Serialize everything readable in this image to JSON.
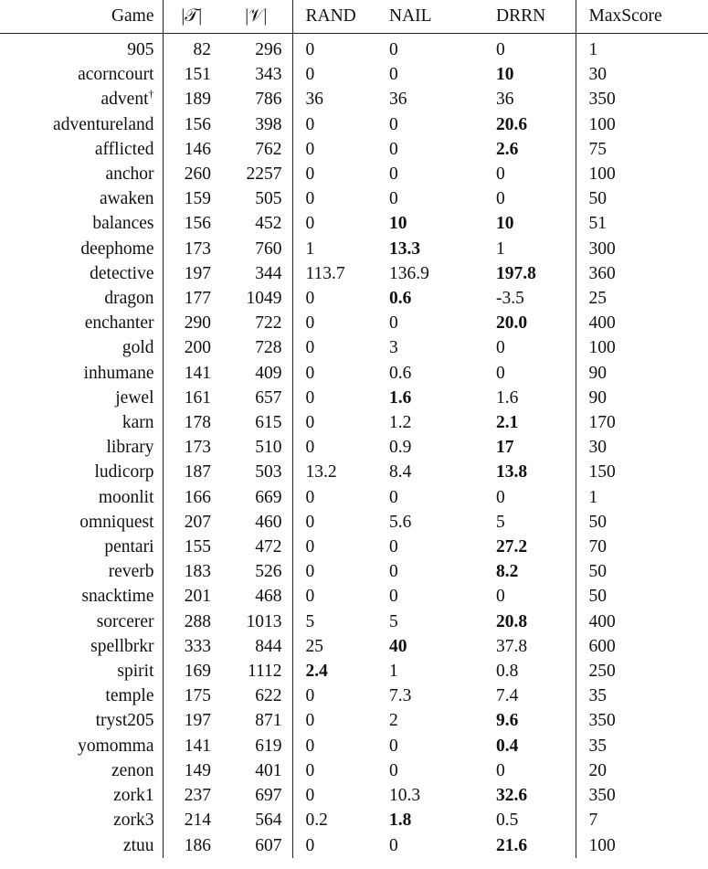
{
  "headers": {
    "game": "Game",
    "t": "|𝒯|",
    "v": "|𝒱|",
    "rand": "RAND",
    "nail": "NAIL",
    "drrn": "DRRN",
    "max": "MaxScore"
  },
  "rows": [
    {
      "game": "905",
      "t": "82",
      "v": "296",
      "rand": "0",
      "nail": "0",
      "drrn": "0",
      "max": "1",
      "bold": []
    },
    {
      "game": "acorncourt",
      "t": "151",
      "v": "343",
      "rand": "0",
      "nail": "0",
      "drrn": "10",
      "max": "30",
      "bold": [
        "drrn"
      ]
    },
    {
      "game": "advent",
      "sup": "†",
      "t": "189",
      "v": "786",
      "rand": "36",
      "nail": "36",
      "drrn": "36",
      "max": "350",
      "bold": []
    },
    {
      "game": "adventureland",
      "t": "156",
      "v": "398",
      "rand": "0",
      "nail": "0",
      "drrn": "20.6",
      "max": "100",
      "bold": [
        "drrn"
      ]
    },
    {
      "game": "afflicted",
      "t": "146",
      "v": "762",
      "rand": "0",
      "nail": "0",
      "drrn": "2.6",
      "max": "75",
      "bold": [
        "drrn"
      ]
    },
    {
      "game": "anchor",
      "t": "260",
      "v": "2257",
      "rand": "0",
      "nail": "0",
      "drrn": "0",
      "max": "100",
      "bold": []
    },
    {
      "game": "awaken",
      "t": "159",
      "v": "505",
      "rand": "0",
      "nail": "0",
      "drrn": "0",
      "max": "50",
      "bold": []
    },
    {
      "game": "balances",
      "t": "156",
      "v": "452",
      "rand": "0",
      "nail": "10",
      "drrn": "10",
      "max": "51",
      "bold": [
        "nail",
        "drrn"
      ]
    },
    {
      "game": "deephome",
      "t": "173",
      "v": "760",
      "rand": "1",
      "nail": "13.3",
      "drrn": "1",
      "max": "300",
      "bold": [
        "nail"
      ]
    },
    {
      "game": "detective",
      "t": "197",
      "v": "344",
      "rand": "113.7",
      "nail": "136.9",
      "drrn": "197.8",
      "max": "360",
      "bold": [
        "drrn"
      ]
    },
    {
      "game": "dragon",
      "t": "177",
      "v": "1049",
      "rand": "0",
      "nail": "0.6",
      "drrn": "-3.5",
      "max": "25",
      "bold": [
        "nail"
      ]
    },
    {
      "game": "enchanter",
      "t": "290",
      "v": "722",
      "rand": "0",
      "nail": "0",
      "drrn": "20.0",
      "max": "400",
      "bold": [
        "drrn"
      ]
    },
    {
      "game": "gold",
      "t": "200",
      "v": "728",
      "rand": "0",
      "nail": "3",
      "drrn": "0",
      "max": "100",
      "bold": []
    },
    {
      "game": "inhumane",
      "t": "141",
      "v": "409",
      "rand": "0",
      "nail": "0.6",
      "drrn": "0",
      "max": "90",
      "bold": []
    },
    {
      "game": "jewel",
      "t": "161",
      "v": "657",
      "rand": "0",
      "nail": "1.6",
      "drrn": "1.6",
      "max": "90",
      "bold": [
        "nail"
      ]
    },
    {
      "game": "karn",
      "t": "178",
      "v": "615",
      "rand": "0",
      "nail": "1.2",
      "drrn": "2.1",
      "max": "170",
      "bold": [
        "drrn"
      ]
    },
    {
      "game": "library",
      "t": "173",
      "v": "510",
      "rand": "0",
      "nail": "0.9",
      "drrn": "17",
      "max": "30",
      "bold": [
        "drrn"
      ]
    },
    {
      "game": "ludicorp",
      "t": "187",
      "v": "503",
      "rand": "13.2",
      "nail": "8.4",
      "drrn": "13.8",
      "max": "150",
      "bold": [
        "drrn"
      ]
    },
    {
      "game": "moonlit",
      "t": "166",
      "v": "669",
      "rand": "0",
      "nail": "0",
      "drrn": "0",
      "max": "1",
      "bold": []
    },
    {
      "game": "omniquest",
      "t": "207",
      "v": "460",
      "rand": "0",
      "nail": "5.6",
      "drrn": "5",
      "max": "50",
      "bold": []
    },
    {
      "game": "pentari",
      "t": "155",
      "v": "472",
      "rand": "0",
      "nail": "0",
      "drrn": "27.2",
      "max": "70",
      "bold": [
        "drrn"
      ]
    },
    {
      "game": "reverb",
      "t": "183",
      "v": "526",
      "rand": "0",
      "nail": "0",
      "drrn": "8.2",
      "max": "50",
      "bold": [
        "drrn"
      ]
    },
    {
      "game": "snacktime",
      "t": "201",
      "v": "468",
      "rand": "0",
      "nail": "0",
      "drrn": "0",
      "max": "50",
      "bold": []
    },
    {
      "game": "sorcerer",
      "t": "288",
      "v": "1013",
      "rand": "5",
      "nail": "5",
      "drrn": "20.8",
      "max": "400",
      "bold": [
        "drrn"
      ]
    },
    {
      "game": "spellbrkr",
      "t": "333",
      "v": "844",
      "rand": "25",
      "nail": "40",
      "drrn": "37.8",
      "max": "600",
      "bold": [
        "nail"
      ]
    },
    {
      "game": "spirit",
      "t": "169",
      "v": "1112",
      "rand": "2.4",
      "nail": "1",
      "drrn": "0.8",
      "max": "250",
      "bold": [
        "rand"
      ]
    },
    {
      "game": "temple",
      "t": "175",
      "v": "622",
      "rand": "0",
      "nail": "7.3",
      "drrn": "7.4",
      "max": "35",
      "bold": []
    },
    {
      "game": "tryst205",
      "t": "197",
      "v": "871",
      "rand": "0",
      "nail": "2",
      "drrn": "9.6",
      "max": "350",
      "bold": [
        "drrn"
      ]
    },
    {
      "game": "yomomma",
      "t": "141",
      "v": "619",
      "rand": "0",
      "nail": "0",
      "drrn": "0.4",
      "max": "35",
      "bold": [
        "drrn"
      ]
    },
    {
      "game": "zenon",
      "t": "149",
      "v": "401",
      "rand": "0",
      "nail": "0",
      "drrn": "0",
      "max": "20",
      "bold": []
    },
    {
      "game": "zork1",
      "t": "237",
      "v": "697",
      "rand": "0",
      "nail": "10.3",
      "drrn": "32.6",
      "max": "350",
      "bold": [
        "drrn"
      ]
    },
    {
      "game": "zork3",
      "t": "214",
      "v": "564",
      "rand": "0.2",
      "nail": "1.8",
      "drrn": "0.5",
      "max": "7",
      "bold": [
        "nail"
      ]
    },
    {
      "game": "ztuu",
      "t": "186",
      "v": "607",
      "rand": "0",
      "nail": "0",
      "drrn": "21.6",
      "max": "100",
      "bold": [
        "drrn"
      ]
    }
  ]
}
